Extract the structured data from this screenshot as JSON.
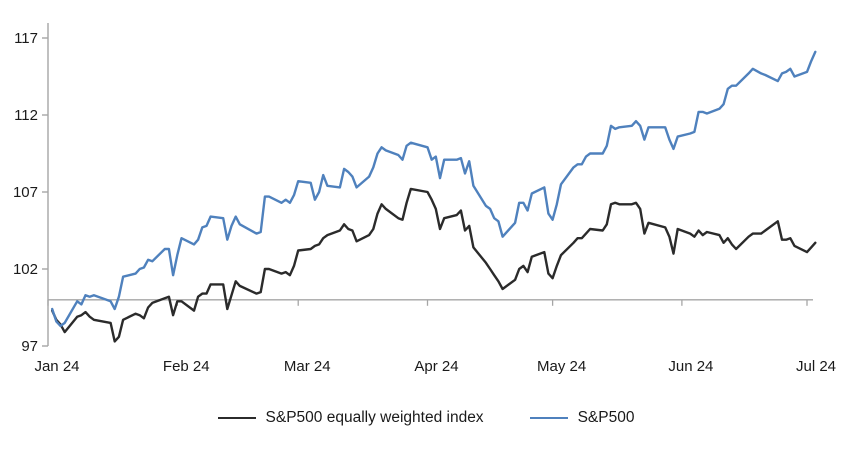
{
  "chart_data": {
    "type": "line",
    "title": "",
    "xlabel": "",
    "ylabel": "",
    "ylim": [
      97,
      117
    ],
    "y_ticks": [
      97,
      102,
      107,
      112,
      117
    ],
    "baseline": 100,
    "grid": false,
    "legend_position": "bottom",
    "axis_color": "#a6a6a6",
    "x_tick_labels": [
      "Jan 24",
      "Feb 24",
      "Mar 24",
      "Apr 24",
      "May 24",
      "Jun 24",
      "Jul 24"
    ],
    "x_tick_dates": [
      "2024-01-01",
      "2024-02-01",
      "2024-03-01",
      "2024-04-01",
      "2024-05-01",
      "2024-06-01",
      "2024-07-01"
    ],
    "x_dates": [
      "2024-01-02",
      "2024-01-03",
      "2024-01-04",
      "2024-01-05",
      "2024-01-08",
      "2024-01-09",
      "2024-01-10",
      "2024-01-11",
      "2024-01-12",
      "2024-01-16",
      "2024-01-17",
      "2024-01-18",
      "2024-01-19",
      "2024-01-22",
      "2024-01-23",
      "2024-01-24",
      "2024-01-25",
      "2024-01-26",
      "2024-01-29",
      "2024-01-30",
      "2024-01-31",
      "2024-02-01",
      "2024-02-02",
      "2024-02-05",
      "2024-02-06",
      "2024-02-07",
      "2024-02-08",
      "2024-02-09",
      "2024-02-12",
      "2024-02-13",
      "2024-02-14",
      "2024-02-15",
      "2024-02-16",
      "2024-02-20",
      "2024-02-21",
      "2024-02-22",
      "2024-02-23",
      "2024-02-26",
      "2024-02-27",
      "2024-02-28",
      "2024-02-29",
      "2024-03-01",
      "2024-03-04",
      "2024-03-05",
      "2024-03-06",
      "2024-03-07",
      "2024-03-08",
      "2024-03-11",
      "2024-03-12",
      "2024-03-13",
      "2024-03-14",
      "2024-03-15",
      "2024-03-18",
      "2024-03-19",
      "2024-03-20",
      "2024-03-21",
      "2024-03-22",
      "2024-03-25",
      "2024-03-26",
      "2024-03-27",
      "2024-03-28",
      "2024-04-01",
      "2024-04-02",
      "2024-04-03",
      "2024-04-04",
      "2024-04-05",
      "2024-04-08",
      "2024-04-09",
      "2024-04-10",
      "2024-04-11",
      "2024-04-12",
      "2024-04-15",
      "2024-04-16",
      "2024-04-17",
      "2024-04-18",
      "2024-04-19",
      "2024-04-22",
      "2024-04-23",
      "2024-04-24",
      "2024-04-25",
      "2024-04-26",
      "2024-04-29",
      "2024-04-30",
      "2024-05-01",
      "2024-05-02",
      "2024-05-03",
      "2024-05-06",
      "2024-05-07",
      "2024-05-08",
      "2024-05-09",
      "2024-05-10",
      "2024-05-13",
      "2024-05-14",
      "2024-05-15",
      "2024-05-16",
      "2024-05-17",
      "2024-05-20",
      "2024-05-21",
      "2024-05-22",
      "2024-05-23",
      "2024-05-24",
      "2024-05-28",
      "2024-05-29",
      "2024-05-30",
      "2024-05-31",
      "2024-06-03",
      "2024-06-04",
      "2024-06-05",
      "2024-06-06",
      "2024-06-07",
      "2024-06-10",
      "2024-06-11",
      "2024-06-12",
      "2024-06-13",
      "2024-06-14",
      "2024-06-17",
      "2024-06-18",
      "2024-06-20",
      "2024-06-21",
      "2024-06-24",
      "2024-06-25",
      "2024-06-26",
      "2024-06-27",
      "2024-06-28",
      "2024-07-01",
      "2024-07-02",
      "2024-07-03"
    ],
    "series": [
      {
        "name": "S&P500 equally weighted index",
        "color": "#2b2b2b",
        "values": [
          99.3,
          98.7,
          98.4,
          97.9,
          98.9,
          99.0,
          99.2,
          98.9,
          98.7,
          98.5,
          97.3,
          97.6,
          98.7,
          99.1,
          99.0,
          98.8,
          99.5,
          99.8,
          100.1,
          100.2,
          99.0,
          99.9,
          99.9,
          99.3,
          100.2,
          100.4,
          100.4,
          101.0,
          101.0,
          99.4,
          100.3,
          101.2,
          100.9,
          100.4,
          100.5,
          102.0,
          102.0,
          101.7,
          101.8,
          101.6,
          102.2,
          103.2,
          103.3,
          103.5,
          103.6,
          104.0,
          104.2,
          104.5,
          104.9,
          104.6,
          104.5,
          103.8,
          104.2,
          104.6,
          105.6,
          106.2,
          105.9,
          105.3,
          105.2,
          106.3,
          107.2,
          107.0,
          106.5,
          105.9,
          104.6,
          105.3,
          105.5,
          105.8,
          104.5,
          104.8,
          103.4,
          102.4,
          102.0,
          101.6,
          101.2,
          100.7,
          101.3,
          102.0,
          102.2,
          101.8,
          102.8,
          103.1,
          101.7,
          101.4,
          102.2,
          102.9,
          103.7,
          104.0,
          104.0,
          104.3,
          104.6,
          104.5,
          104.9,
          106.2,
          106.3,
          106.2,
          106.2,
          106.3,
          105.9,
          104.3,
          105.0,
          104.7,
          104.1,
          103.0,
          104.6,
          104.3,
          104.1,
          104.5,
          104.2,
          104.4,
          104.2,
          103.7,
          104.0,
          103.6,
          103.3,
          104.1,
          104.3,
          104.3,
          104.5,
          105.1,
          103.9,
          103.9,
          104.0,
          103.5,
          103.1,
          103.4,
          103.7
        ]
      },
      {
        "name": "S&P500",
        "color": "#4f81bd",
        "values": [
          99.4,
          98.6,
          98.3,
          98.5,
          99.9,
          99.7,
          100.3,
          100.2,
          100.3,
          99.9,
          99.4,
          100.2,
          101.5,
          101.7,
          102.0,
          102.1,
          102.6,
          102.5,
          103.3,
          103.3,
          101.6,
          102.9,
          104.0,
          103.6,
          103.9,
          104.7,
          104.8,
          105.4,
          105.3,
          103.9,
          104.8,
          105.4,
          104.9,
          104.3,
          104.4,
          106.7,
          106.7,
          106.3,
          106.5,
          106.3,
          106.8,
          107.7,
          107.6,
          106.5,
          107.0,
          108.1,
          107.4,
          107.3,
          108.5,
          108.3,
          108.0,
          107.3,
          108.0,
          108.6,
          109.5,
          109.9,
          109.7,
          109.4,
          109.1,
          110.0,
          110.2,
          109.9,
          109.1,
          109.3,
          107.9,
          109.1,
          109.1,
          109.2,
          108.2,
          109.0,
          107.4,
          106.1,
          105.9,
          105.3,
          105.1,
          104.1,
          105.0,
          106.3,
          106.3,
          105.8,
          106.9,
          107.3,
          105.6,
          105.2,
          106.2,
          107.5,
          108.6,
          108.8,
          108.8,
          109.3,
          109.5,
          109.5,
          110.0,
          111.3,
          111.1,
          111.2,
          111.3,
          111.6,
          111.3,
          110.4,
          111.2,
          111.2,
          110.4,
          109.8,
          110.6,
          110.8,
          110.9,
          112.2,
          112.2,
          112.1,
          112.4,
          112.7,
          113.7,
          113.9,
          113.9,
          114.7,
          115.0,
          114.7,
          114.6,
          114.2,
          114.7,
          114.8,
          115.0,
          114.5,
          114.8,
          115.5,
          116.1
        ]
      }
    ]
  },
  "legend": {
    "items": [
      {
        "label": "S&P500 equally weighted index",
        "color": "#2b2b2b"
      },
      {
        "label": "S&P500",
        "color": "#4f81bd"
      }
    ]
  }
}
